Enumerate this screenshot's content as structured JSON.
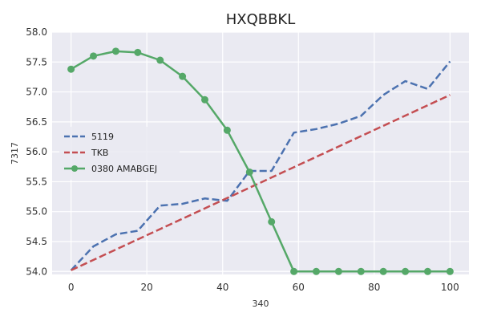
{
  "chart_data": {
    "type": "line",
    "title": "HXQBBKL",
    "xlabel": "340",
    "ylabel": "7317",
    "xlim": [
      -5,
      105
    ],
    "ylim": [
      53.95,
      58.0
    ],
    "x_ticks": [
      0,
      20,
      40,
      60,
      80,
      100
    ],
    "y_ticks": [
      54.0,
      54.5,
      55.0,
      55.5,
      56.0,
      56.5,
      57.0,
      57.5,
      58.0
    ],
    "y_tick_labels": [
      "54.0",
      "54.5",
      "55.0",
      "55.5",
      "56.0",
      "56.5",
      "57.0",
      "57.5",
      "58.0"
    ],
    "grid": true,
    "legend_position": "center-left",
    "series": [
      {
        "name": "5119",
        "color": "#4c72b0",
        "style": "dashed",
        "markers": false,
        "x": [
          0,
          5.9,
          11.8,
          17.6,
          23.5,
          29.4,
          35.3,
          41.2,
          47.1,
          52.9,
          58.8,
          64.7,
          70.6,
          76.5,
          82.4,
          88.2,
          94.1,
          100
        ],
        "y": [
          54.02,
          54.42,
          54.62,
          54.68,
          55.1,
          55.13,
          55.22,
          55.18,
          55.68,
          55.68,
          56.32,
          56.38,
          56.47,
          56.6,
          56.95,
          57.18,
          57.05,
          57.51
        ]
      },
      {
        "name": "TKB",
        "color": "#c44e52",
        "style": "dashed",
        "markers": false,
        "x": [
          0,
          100
        ],
        "y": [
          54.02,
          56.95
        ]
      },
      {
        "name": "0380 AMABGEJ",
        "color": "#55a868",
        "style": "solid",
        "markers": true,
        "x": [
          0,
          5.9,
          11.8,
          17.6,
          23.5,
          29.4,
          35.3,
          41.2,
          47.1,
          52.9,
          58.8,
          64.7,
          70.6,
          76.5,
          82.4,
          88.2,
          94.1,
          100
        ],
        "y": [
          57.38,
          57.6,
          57.68,
          57.66,
          57.53,
          57.26,
          56.87,
          56.36,
          55.66,
          54.83,
          54.0,
          54.0,
          54.0,
          54.0,
          54.0,
          54.0,
          54.0,
          54.0
        ]
      }
    ]
  }
}
